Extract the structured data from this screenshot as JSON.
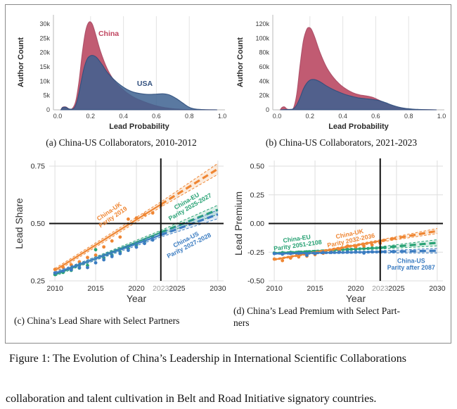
{
  "figure_caption": "Figure 1: The Evolution of China’s Leadership in International Scientific Collaborations",
  "body_text": "collaboration and talent cultivation in Belt and Road Initiative signatory countries.",
  "chart_data": [
    {
      "id": "a",
      "type": "area",
      "caption": "(a) China-US Collaborators, 2010-2012",
      "xlabel": "Lead Probability",
      "ylabel": "Author Count",
      "ylim_k": [
        0,
        30
      ],
      "yticks": [
        {
          "v": 0,
          "label": "0"
        },
        {
          "v": 5,
          "label": "5k"
        },
        {
          "v": 10,
          "label": "10k"
        },
        {
          "v": 15,
          "label": "15k"
        },
        {
          "v": 20,
          "label": "20k"
        },
        {
          "v": 25,
          "label": "25k"
        },
        {
          "v": 30,
          "label": "30k"
        }
      ],
      "xticks": [
        {
          "v": 0,
          "label": "0.0"
        },
        {
          "v": 0.2,
          "label": "0.2"
        },
        {
          "v": 0.4,
          "label": "0.4"
        },
        {
          "v": 0.6,
          "label": "0.6"
        },
        {
          "v": 0.8,
          "label": "0.8"
        },
        {
          "v": 1.0,
          "label": "1.0"
        }
      ],
      "series": [
        {
          "name": "China",
          "color": "#C15B72",
          "stroke": "#A94A64",
          "opacity": 1,
          "points": [
            [
              0.02,
              0
            ],
            [
              0.03,
              0.9
            ],
            [
              0.05,
              1.0
            ],
            [
              0.07,
              0.3
            ],
            [
              0.09,
              0.5
            ],
            [
              0.11,
              3
            ],
            [
              0.13,
              10
            ],
            [
              0.15,
              20
            ],
            [
              0.17,
              27.5
            ],
            [
              0.19,
              30.6
            ],
            [
              0.21,
              30.0
            ],
            [
              0.23,
              26.5
            ],
            [
              0.26,
              20.5
            ],
            [
              0.3,
              14.5
            ],
            [
              0.34,
              10.5
            ],
            [
              0.38,
              8.0
            ],
            [
              0.42,
              6.0
            ],
            [
              0.46,
              4.5
            ],
            [
              0.5,
              3.4
            ],
            [
              0.55,
              2.3
            ],
            [
              0.6,
              1.4
            ],
            [
              0.65,
              0.8
            ],
            [
              0.7,
              0.4
            ],
            [
              0.76,
              0.15
            ],
            [
              0.82,
              0.05
            ],
            [
              0.9,
              0.02
            ],
            [
              0.97,
              0
            ]
          ]
        },
        {
          "name": "USA",
          "color": "#3D6191",
          "stroke": "#2E4E7C",
          "opacity": 0.85,
          "points": [
            [
              0.02,
              0
            ],
            [
              0.03,
              0.8
            ],
            [
              0.05,
              0.9
            ],
            [
              0.07,
              0.3
            ],
            [
              0.1,
              0.6
            ],
            [
              0.12,
              3.5
            ],
            [
              0.14,
              9
            ],
            [
              0.16,
              14.5
            ],
            [
              0.18,
              17.8
            ],
            [
              0.2,
              18.9
            ],
            [
              0.22,
              18.9
            ],
            [
              0.24,
              18.1
            ],
            [
              0.27,
              15.8
            ],
            [
              0.3,
              13.2
            ],
            [
              0.34,
              10.7
            ],
            [
              0.38,
              8.7
            ],
            [
              0.42,
              7.2
            ],
            [
              0.46,
              6.2
            ],
            [
              0.5,
              5.7
            ],
            [
              0.55,
              5.4
            ],
            [
              0.6,
              5.5
            ],
            [
              0.64,
              5.6
            ],
            [
              0.68,
              5.2
            ],
            [
              0.72,
              4.0
            ],
            [
              0.76,
              2.4
            ],
            [
              0.8,
              0.9
            ],
            [
              0.84,
              0.25
            ],
            [
              0.9,
              0.05
            ],
            [
              0.97,
              0
            ]
          ]
        }
      ],
      "annotations": [
        {
          "text": "China",
          "x": 0.31,
          "y": 25.8,
          "color": "#C0445F"
        },
        {
          "text": "USA",
          "x": 0.53,
          "y": 8.4,
          "color": "#33517F"
        }
      ]
    },
    {
      "id": "b",
      "type": "area",
      "caption": "(b) China-US Collaborators, 2021-2023",
      "xlabel": "Lead Probability",
      "ylabel": "Author Count",
      "ylim_k": [
        0,
        120
      ],
      "yticks": [
        {
          "v": 0,
          "label": "0"
        },
        {
          "v": 20,
          "label": "20k"
        },
        {
          "v": 40,
          "label": "40k"
        },
        {
          "v": 60,
          "label": "60k"
        },
        {
          "v": 80,
          "label": "80k"
        },
        {
          "v": 100,
          "label": "100k"
        },
        {
          "v": 120,
          "label": "120k"
        }
      ],
      "xticks": [
        {
          "v": 0,
          "label": "0.0"
        },
        {
          "v": 0.2,
          "label": "0.2"
        },
        {
          "v": 0.4,
          "label": "0.4"
        },
        {
          "v": 0.6,
          "label": "0.6"
        },
        {
          "v": 0.8,
          "label": "0.8"
        },
        {
          "v": 1.0,
          "label": "1.0"
        }
      ],
      "series": [
        {
          "name": "China",
          "color": "#C15B72",
          "stroke": "#A94A64",
          "opacity": 1,
          "points": [
            [
              0.02,
              0
            ],
            [
              0.03,
              3.2
            ],
            [
              0.045,
              4.2
            ],
            [
              0.06,
              1.2
            ],
            [
              0.08,
              0.6
            ],
            [
              0.1,
              2.5
            ],
            [
              0.12,
              22
            ],
            [
              0.14,
              62
            ],
            [
              0.16,
              96
            ],
            [
              0.18,
              112
            ],
            [
              0.195,
              115
            ],
            [
              0.21,
              112
            ],
            [
              0.23,
              101
            ],
            [
              0.26,
              81
            ],
            [
              0.3,
              60
            ],
            [
              0.34,
              46
            ],
            [
              0.38,
              36
            ],
            [
              0.42,
              29
            ],
            [
              0.46,
              24
            ],
            [
              0.5,
              21
            ],
            [
              0.54,
              19.5
            ],
            [
              0.58,
              17.5
            ],
            [
              0.62,
              13.5
            ],
            [
              0.66,
              9
            ],
            [
              0.7,
              5.5
            ],
            [
              0.74,
              3
            ],
            [
              0.78,
              1.5
            ],
            [
              0.84,
              0.5
            ],
            [
              0.9,
              0.2
            ],
            [
              0.97,
              0
            ]
          ]
        },
        {
          "name": "USA",
          "color": "#3D6191",
          "stroke": "#2E4E7C",
          "opacity": 0.85,
          "points": [
            [
              0.02,
              0
            ],
            [
              0.05,
              0.4
            ],
            [
              0.08,
              0.6
            ],
            [
              0.1,
              1.5
            ],
            [
              0.12,
              7
            ],
            [
              0.14,
              17
            ],
            [
              0.16,
              29
            ],
            [
              0.18,
              37
            ],
            [
              0.2,
              41.5
            ],
            [
              0.22,
              42.5
            ],
            [
              0.24,
              41.5
            ],
            [
              0.27,
              38
            ],
            [
              0.3,
              33.5
            ],
            [
              0.34,
              28.5
            ],
            [
              0.38,
              24.5
            ],
            [
              0.42,
              21
            ],
            [
              0.46,
              18.5
            ],
            [
              0.5,
              16.5
            ],
            [
              0.54,
              15.5
            ],
            [
              0.58,
              14.5
            ],
            [
              0.62,
              13
            ],
            [
              0.66,
              10
            ],
            [
              0.7,
              6.5
            ],
            [
              0.74,
              3.8
            ],
            [
              0.78,
              2
            ],
            [
              0.82,
              1.1
            ],
            [
              0.86,
              0.6
            ],
            [
              0.9,
              0.3
            ],
            [
              0.97,
              0
            ]
          ]
        }
      ],
      "annotations": []
    },
    {
      "id": "c",
      "type": "scatter",
      "caption": "(c) China’s Lead Share with Select Partners",
      "xlabel": "Year",
      "ylabel": "Lead Share",
      "ylim": [
        0.25,
        0.75
      ],
      "hline": 0.5,
      "vline": 2023,
      "yticks": [
        {
          "v": 0.75,
          "label": "0.75"
        },
        {
          "v": 0.5,
          "label": "0.50"
        },
        {
          "v": 0.25,
          "label": "0.25"
        }
      ],
      "xticks": [
        {
          "v": 2010,
          "label": "2010"
        },
        {
          "v": 2015,
          "label": "2015"
        },
        {
          "v": 2020,
          "label": "2020"
        },
        {
          "v": 2023,
          "label": "2023",
          "muted": true
        },
        {
          "v": 2025,
          "label": "2025"
        },
        {
          "v": 2030,
          "label": "2030"
        }
      ],
      "series": [
        {
          "name": "China-UK",
          "color": "#EF8633",
          "years_start": 2010,
          "values": [
            0.3,
            0.309,
            0.32,
            0.333,
            0.352,
            0.362,
            0.398,
            0.424,
            0.441,
            0.519,
            0.524,
            0.539,
            0.546,
            0.579
          ],
          "fit": {
            "y0": 0.296,
            "y1": 0.583,
            "y2": 0.738,
            "w0": 0.008,
            "w1": 0.011,
            "w2": 0.024
          },
          "label": [
            "China-UK",
            "Parity 2019"
          ],
          "label_pos": {
            "x": 2016.8,
            "y": 0.545,
            "angle": -34
          }
        },
        {
          "name": "China-EU",
          "color": "#28A274",
          "years_start": 2010,
          "values": [
            0.278,
            0.287,
            0.296,
            0.306,
            0.317,
            0.386,
            0.35,
            0.362,
            0.376,
            0.391,
            0.407,
            0.423,
            0.441,
            0.462
          ],
          "fit": {
            "y0": 0.277,
            "y1": 0.461,
            "y2": 0.56,
            "w0": 0.006,
            "w1": 0.009,
            "w2": 0.02
          },
          "label": [
            "China-EU",
            "Parity 2025-2027"
          ],
          "label_pos": {
            "x": 2026.3,
            "y": 0.59,
            "angle": -30
          }
        },
        {
          "name": "China-US",
          "color": "#3B7CC1",
          "years_start": 2010,
          "values": [
            0.285,
            0.293,
            0.299,
            0.308,
            0.308,
            0.329,
            0.342,
            0.356,
            0.369,
            0.383,
            0.397,
            0.413,
            0.428,
            0.452
          ],
          "fit": {
            "y0": 0.283,
            "y1": 0.45,
            "y2": 0.54,
            "w0": 0.006,
            "w1": 0.009,
            "w2": 0.019
          },
          "label": [
            "China-US",
            "Parity 2027-2028"
          ],
          "label_pos": {
            "x": 2026.2,
            "y": 0.422,
            "angle": -27
          }
        }
      ]
    },
    {
      "id": "d",
      "type": "scatter",
      "caption": "(d) China’s Lead Premium with Select Partners",
      "caption_lines": [
        "(d) China’s Lead Premium with Select Part-",
        "ners"
      ],
      "xlabel": "Year",
      "ylabel": "Lead Premium",
      "ylim": [
        -0.5,
        0.5
      ],
      "hline": 0,
      "vline": 2023,
      "yticks": [
        {
          "v": 0.5,
          "label": "0.50"
        },
        {
          "v": 0.25,
          "label": "0.25"
        },
        {
          "v": 0,
          "label": "0.00"
        },
        {
          "v": -0.25,
          "label": "-0.25"
        },
        {
          "v": -0.5,
          "label": "-0.50"
        }
      ],
      "xticks": [
        {
          "v": 2010,
          "label": "2010"
        },
        {
          "v": 2015,
          "label": "2015"
        },
        {
          "v": 2020,
          "label": "2020"
        },
        {
          "v": 2023,
          "label": "2023",
          "muted": true
        },
        {
          "v": 2025,
          "label": "2025"
        },
        {
          "v": 2030,
          "label": "2030"
        }
      ],
      "series": [
        {
          "name": "China-EU",
          "color": "#28A274",
          "years_start": 2010,
          "values": [
            -0.257,
            -0.254,
            -0.252,
            -0.25,
            -0.247,
            -0.244,
            -0.24,
            -0.236,
            -0.231,
            -0.226,
            -0.222,
            -0.218,
            -0.214,
            -0.21
          ],
          "fit": {
            "y0": -0.258,
            "y1": -0.212,
            "y2": -0.168,
            "w0": 0.006,
            "w1": 0.01,
            "w2": 0.027
          },
          "label": [
            "China-EU",
            "Parity 2051-2108"
          ],
          "label_pos": {
            "x": 2012.8,
            "y": -0.15,
            "angle": -8
          }
        },
        {
          "name": "China-UK",
          "color": "#EF8633",
          "years_start": 2010,
          "values": [
            -0.31,
            -0.323,
            -0.301,
            -0.291,
            -0.284,
            -0.271,
            -0.259,
            -0.247,
            -0.232,
            -0.196,
            -0.203,
            -0.196,
            -0.186,
            -0.172
          ],
          "fit": {
            "y0": -0.314,
            "y1": -0.152,
            "y2": -0.065,
            "w0": 0.007,
            "w1": 0.01,
            "w2": 0.022
          },
          "label": [
            "China-UK",
            "Parity 2032-2036"
          ],
          "label_pos": {
            "x": 2019.3,
            "y": -0.108,
            "angle": -12
          }
        },
        {
          "name": "China-US",
          "color": "#3B7CC1",
          "years_start": 2010,
          "values": [
            -0.262,
            -0.267,
            -0.261,
            -0.259,
            -0.277,
            -0.262,
            -0.253,
            -0.251,
            -0.249,
            -0.247,
            -0.246,
            -0.257,
            -0.246,
            -0.247
          ],
          "fit": {
            "y0": -0.263,
            "y1": -0.247,
            "y2": -0.237,
            "w0": 0.006,
            "w1": 0.01,
            "w2": 0.02
          },
          "label": [
            "China-US",
            "Parity after 2087"
          ],
          "label_pos": {
            "x": 2026.8,
            "y": -0.345,
            "angle": 0
          }
        }
      ]
    }
  ]
}
